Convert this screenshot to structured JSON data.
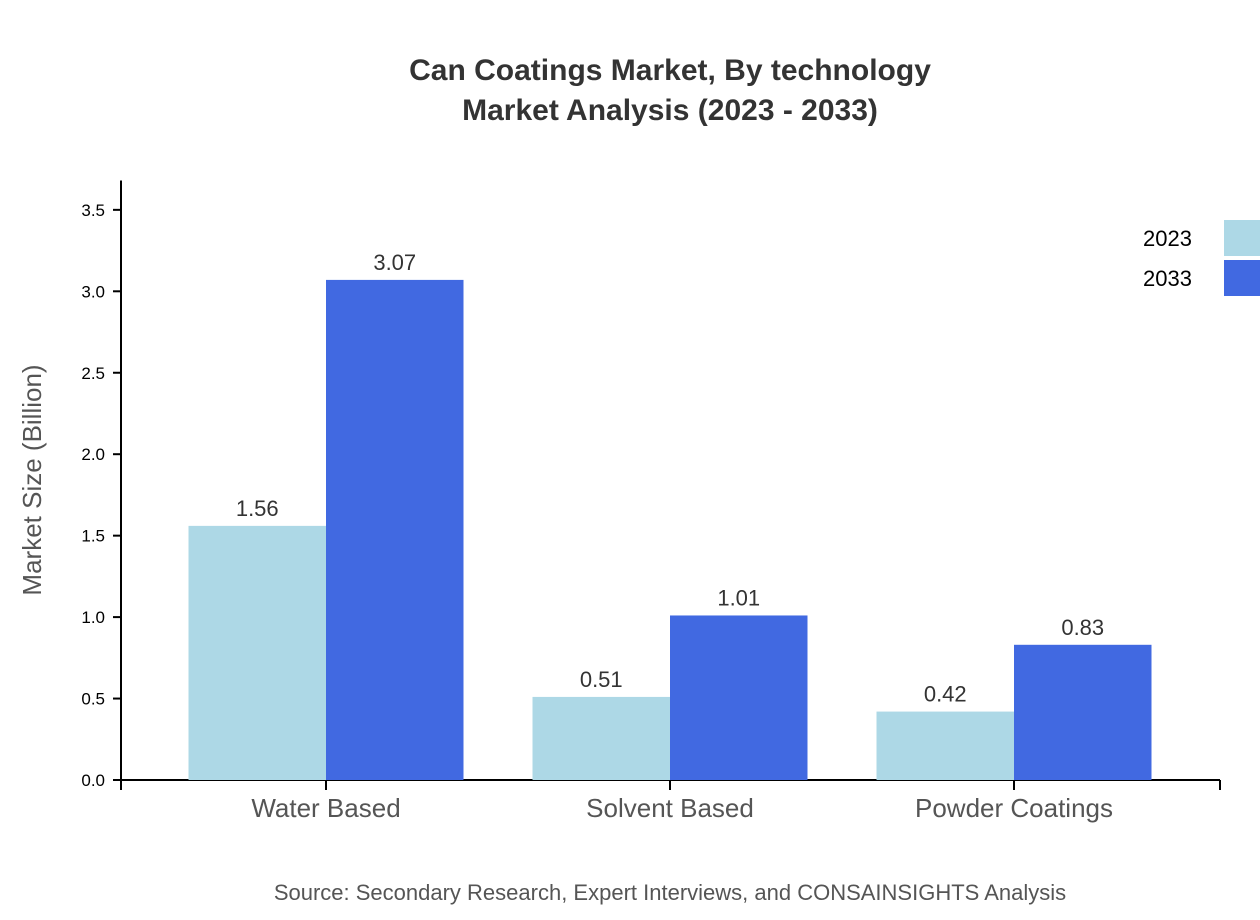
{
  "chart_data": {
    "type": "bar",
    "title": "Can Coatings Market, By technology",
    "subtitle": "Market Analysis (2023 - 2033)",
    "xlabel": "",
    "ylabel": "Market Size (Billion)",
    "categories": [
      "Water Based",
      "Solvent Based",
      "Powder Coatings"
    ],
    "series": [
      {
        "name": "2023",
        "color": "#add8e6",
        "values": [
          1.56,
          0.51,
          0.42
        ]
      },
      {
        "name": "2033",
        "color": "#4169e1",
        "values": [
          3.07,
          1.01,
          0.83
        ]
      }
    ],
    "ylim": [
      0,
      3.68
    ],
    "yticks": [
      "0.0",
      "0.5",
      "1.0",
      "1.5",
      "2.0",
      "2.5",
      "3.0",
      "3.5"
    ],
    "grid": false,
    "legend": "top-right",
    "source": "Source: Secondary Research, Expert Interviews, and CONSAINSIGHTS Analysis"
  }
}
